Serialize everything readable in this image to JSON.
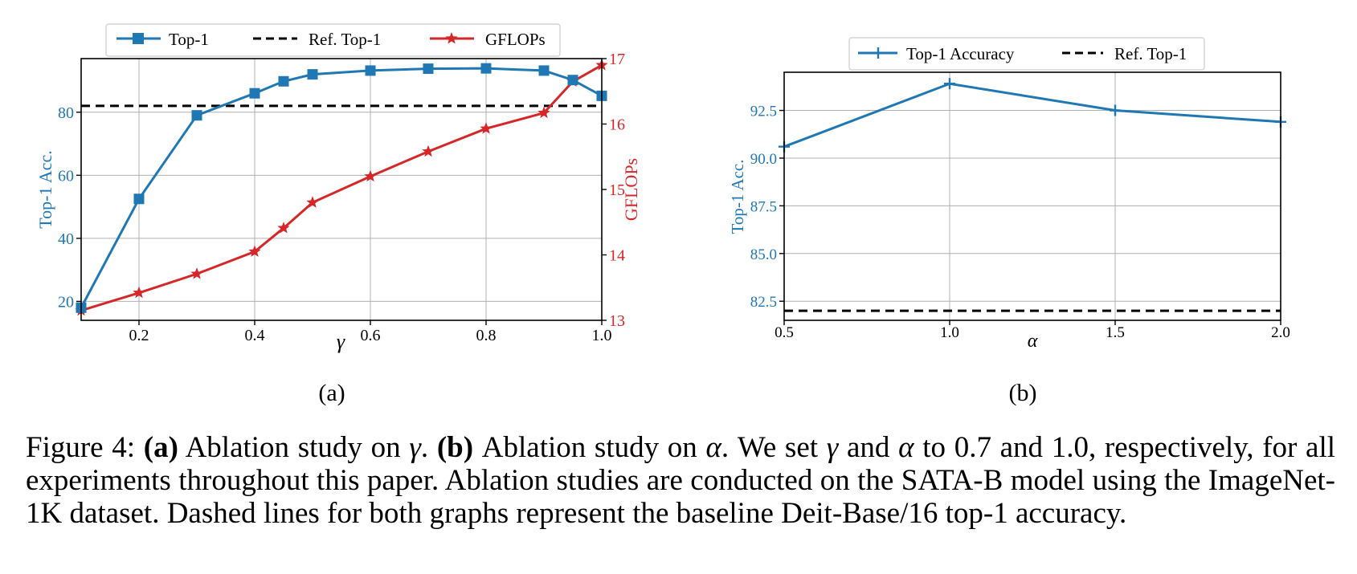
{
  "chart_data": [
    {
      "type": "line",
      "panel_label": "(a)",
      "xlabel": "γ",
      "ylabel": "Top-1 Acc.",
      "y2label": "GFLOPs",
      "xlim": [
        0.1,
        1.0
      ],
      "ylim": [
        14,
        97
      ],
      "y2lim": [
        13,
        17
      ],
      "xticks": [
        0.2,
        0.4,
        0.6,
        0.8,
        1.0
      ],
      "xtick_labels": [
        "0.2",
        "0.4",
        "0.6",
        "0.8",
        "1.0"
      ],
      "yticks": [
        20,
        40,
        60,
        80
      ],
      "ytick_labels": [
        "20",
        "40",
        "60",
        "80"
      ],
      "y2ticks": [
        13,
        14,
        15,
        16,
        17
      ],
      "y2tick_labels": [
        "13",
        "14",
        "15",
        "16",
        "17"
      ],
      "grid": true,
      "legend_position": "top-center-outside",
      "series": [
        {
          "name": "Top-1",
          "axis": "left",
          "color": "#1f77b4",
          "marker": "square",
          "x": [
            0.1,
            0.2,
            0.3,
            0.4,
            0.45,
            0.5,
            0.6,
            0.7,
            0.8,
            0.9,
            0.95,
            1.0
          ],
          "y": [
            18.0,
            52.5,
            79.0,
            86.0,
            89.8,
            92.0,
            93.2,
            93.8,
            93.9,
            93.2,
            90.2,
            85.2
          ]
        },
        {
          "name": "Ref. Top-1",
          "axis": "left",
          "color": "#000000",
          "style": "dashed",
          "x": [
            0.1,
            1.0
          ],
          "y": [
            82.0,
            82.0
          ]
        },
        {
          "name": "GFLOPs",
          "axis": "right",
          "color": "#d62728",
          "marker": "star",
          "x": [
            0.1,
            0.2,
            0.3,
            0.4,
            0.45,
            0.5,
            0.6,
            0.7,
            0.8,
            0.9,
            0.95,
            1.0
          ],
          "y": [
            13.15,
            13.42,
            13.71,
            14.05,
            14.41,
            14.8,
            15.2,
            15.58,
            15.93,
            16.17,
            16.65,
            16.9
          ]
        }
      ]
    },
    {
      "type": "line",
      "panel_label": "(b)",
      "xlabel": "α",
      "ylabel": "Top-1 Acc.",
      "xlim": [
        0.5,
        2.0
      ],
      "ylim": [
        81.5,
        94.5
      ],
      "xticks": [
        0.5,
        1.0,
        1.5,
        2.0
      ],
      "xtick_labels": [
        "0.5",
        "1.0",
        "1.5",
        "2.0"
      ],
      "yticks": [
        82.5,
        85.0,
        87.5,
        90.0,
        92.5
      ],
      "ytick_labels": [
        "82.5",
        "85.0",
        "87.5",
        "90.0",
        "92.5"
      ],
      "grid": true,
      "legend_position": "top-center-outside",
      "series": [
        {
          "name": "Top-1 Accuracy",
          "color": "#1f77b4",
          "marker": "plus",
          "x": [
            0.5,
            1.0,
            1.5,
            2.0
          ],
          "y": [
            90.6,
            93.9,
            92.5,
            91.9
          ]
        },
        {
          "name": "Ref. Top-1",
          "color": "#000000",
          "style": "dashed",
          "x": [
            0.5,
            2.0
          ],
          "y": [
            82.0,
            82.0
          ]
        }
      ]
    }
  ],
  "caption": {
    "figure_label": "Figure 4:",
    "a_label": "(a)",
    "a_text": "Ablation study on",
    "gamma": "γ",
    "period": ".",
    "b_label": "(b)",
    "b_text": "Ablation study on",
    "alpha": "α",
    "we_set": ". We set",
    "and": "and",
    "rest": "to 0.7 and 1.0, respectively, for all experiments throughout this paper. Ablation studies are conducted on the SATA-B model using the ImageNet-1K dataset. Dashed lines for both graphs represent the baseline Deit-Base/16 top-1 accuracy."
  }
}
